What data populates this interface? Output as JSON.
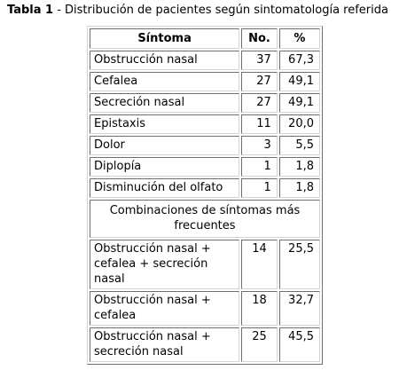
{
  "caption": {
    "label": "Tabla 1",
    "text": " - Distribución de pacientes según sintomatología referida"
  },
  "table": {
    "headers": {
      "symptom": "Síntoma",
      "count": "No.",
      "percent": "%"
    },
    "rows": [
      {
        "symptom": "Obstrucción nasal",
        "count": "37",
        "percent": "67,3"
      },
      {
        "symptom": "Cefalea",
        "count": "27",
        "percent": "49,1"
      },
      {
        "symptom": "Secreción nasal",
        "count": "27",
        "percent": "49,1"
      },
      {
        "symptom": "Epistaxis",
        "count": "11",
        "percent": "20,0"
      },
      {
        "symptom": "Dolor",
        "count": "3",
        "percent": "5,5"
      },
      {
        "symptom": "Diplopía",
        "count": "1",
        "percent": "1,8"
      },
      {
        "symptom": "Disminución del olfato",
        "count": "1",
        "percent": "1,8"
      }
    ],
    "section_title": "Combinaciones de síntomas más frecuentes",
    "combination_rows": [
      {
        "symptom": "Obstrucción nasal + cefalea + secreción nasal",
        "count": "14",
        "percent": "25,5"
      },
      {
        "symptom": "Obstrucción nasal + cefalea",
        "count": "18",
        "percent": "32,7"
      },
      {
        "symptom": "Obstrucción nasal + secreción nasal",
        "count": "25",
        "percent": "45,5"
      }
    ]
  }
}
